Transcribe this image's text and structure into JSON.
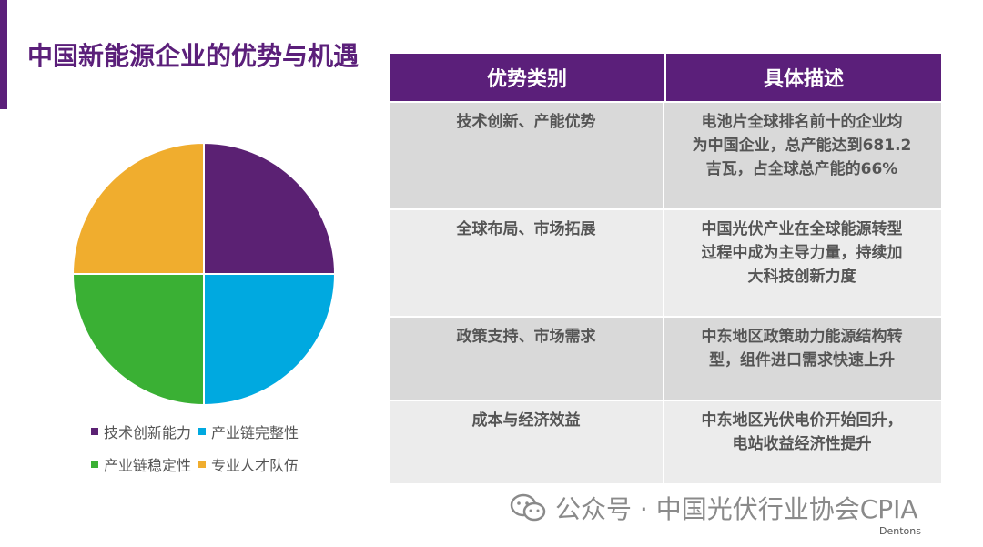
{
  "slide": {
    "title": "中国新能源企业的优势与机遇",
    "accent_color": "#5b1f7a"
  },
  "chart_data": {
    "type": "pie",
    "categories": [
      "技术创新能力",
      "产业链完整性",
      "产业链稳定性",
      "专业人才队伍"
    ],
    "values": [
      25,
      25,
      25,
      25
    ],
    "colors": [
      "#5b2173",
      "#00a9e0",
      "#3ab034",
      "#f0ad2e"
    ],
    "legend_position": "bottom"
  },
  "table": {
    "headers": [
      "优势类别",
      "具体描述"
    ],
    "rows": [
      {
        "category": "技术创新、产能优势",
        "description": [
          "电池片全球排名前十的企业均",
          "为中国企业，总产能达到681.2",
          "吉瓦，占全球总产能的66%"
        ]
      },
      {
        "category": "全球布局、市场拓展",
        "description": [
          "中国光伏产业在全球能源转型",
          "过程中成为主导力量，持续加",
          "大科技创新力度"
        ]
      },
      {
        "category": "政策支持、市场需求",
        "description": [
          "中东地区政策助力能源结构转",
          "型，组件进口需求快速上升"
        ]
      },
      {
        "category": "成本与经济效益",
        "description": [
          "中东地区光伏电价开始回升，",
          "电站收益经济性提升"
        ]
      }
    ]
  },
  "watermark": {
    "text": "公众号 · 中国光伏行业协会CPIA",
    "icon": "wechat-icon"
  },
  "footer": {
    "brand": "Dentons"
  }
}
